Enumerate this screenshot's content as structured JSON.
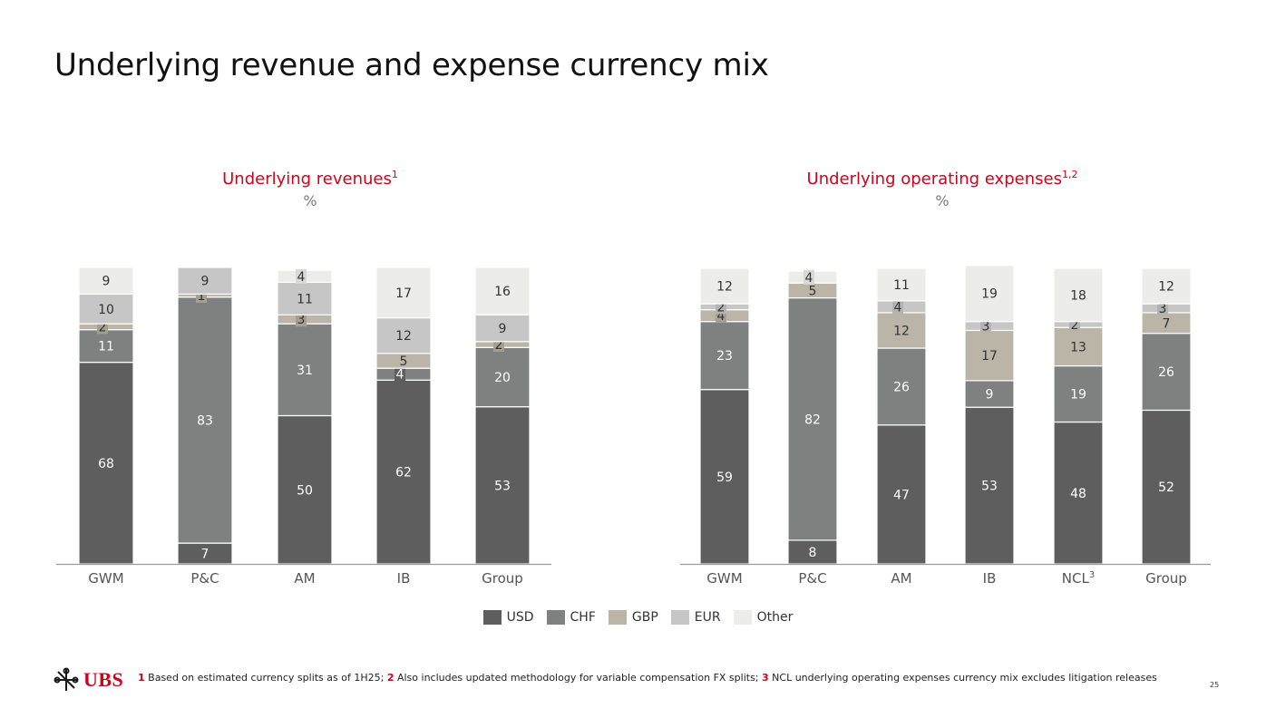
{
  "title": "Underlying revenue and expense currency mix",
  "colors": {
    "USD": "#5d5e5d",
    "CHF": "#7e817f",
    "GBP": "#bab5a7",
    "EUR": "#c6c6c6",
    "Other": "#ececea",
    "accent": "#d0021b"
  },
  "legend": [
    "USD",
    "CHF",
    "GBP",
    "EUR",
    "Other"
  ],
  "chart_data": [
    {
      "type": "bar",
      "stacked": true,
      "title": "Underlying revenues",
      "title_superscript": "1",
      "unit": "%",
      "categories": [
        "GWM",
        "P&C",
        "AM",
        "IB",
        "Group"
      ],
      "category_superscripts": [
        "",
        "",
        "",
        "",
        ""
      ],
      "series": [
        {
          "name": "USD",
          "values": [
            68,
            7,
            50,
            62,
            53
          ]
        },
        {
          "name": "CHF",
          "values": [
            11,
            83,
            31,
            4,
            20
          ]
        },
        {
          "name": "GBP",
          "values": [
            2,
            1,
            3,
            5,
            2
          ]
        },
        {
          "name": "EUR",
          "values": [
            10,
            9,
            11,
            12,
            9
          ]
        },
        {
          "name": "Other",
          "values": [
            9,
            0,
            4,
            17,
            16
          ]
        }
      ],
      "ylim": [
        0,
        100
      ]
    },
    {
      "type": "bar",
      "stacked": true,
      "title": "Underlying operating expenses",
      "title_superscript": "1,2",
      "unit": "%",
      "categories": [
        "GWM",
        "P&C",
        "AM",
        "IB",
        "NCL",
        "Group"
      ],
      "category_superscripts": [
        "",
        "",
        "",
        "",
        "3",
        ""
      ],
      "series": [
        {
          "name": "USD",
          "values": [
            59,
            8,
            47,
            53,
            48,
            52
          ]
        },
        {
          "name": "CHF",
          "values": [
            23,
            82,
            26,
            9,
            19,
            26
          ]
        },
        {
          "name": "GBP",
          "values": [
            4,
            5,
            12,
            17,
            13,
            7
          ]
        },
        {
          "name": "EUR",
          "values": [
            2,
            0,
            4,
            3,
            2,
            3
          ]
        },
        {
          "name": "Other",
          "values": [
            12,
            4,
            11,
            19,
            18,
            12
          ]
        }
      ],
      "ylim": [
        0,
        100
      ]
    }
  ],
  "footer": {
    "brand": "UBS",
    "notes": [
      {
        "num": "1",
        "text": " Based on estimated currency splits as of 1H25; "
      },
      {
        "num": "2",
        "text": " Also includes updated methodology for variable compensation FX splits; "
      },
      {
        "num": "3",
        "text": " NCL underlying operating expenses currency mix excludes litigation releases"
      }
    ],
    "page_number": "25"
  }
}
